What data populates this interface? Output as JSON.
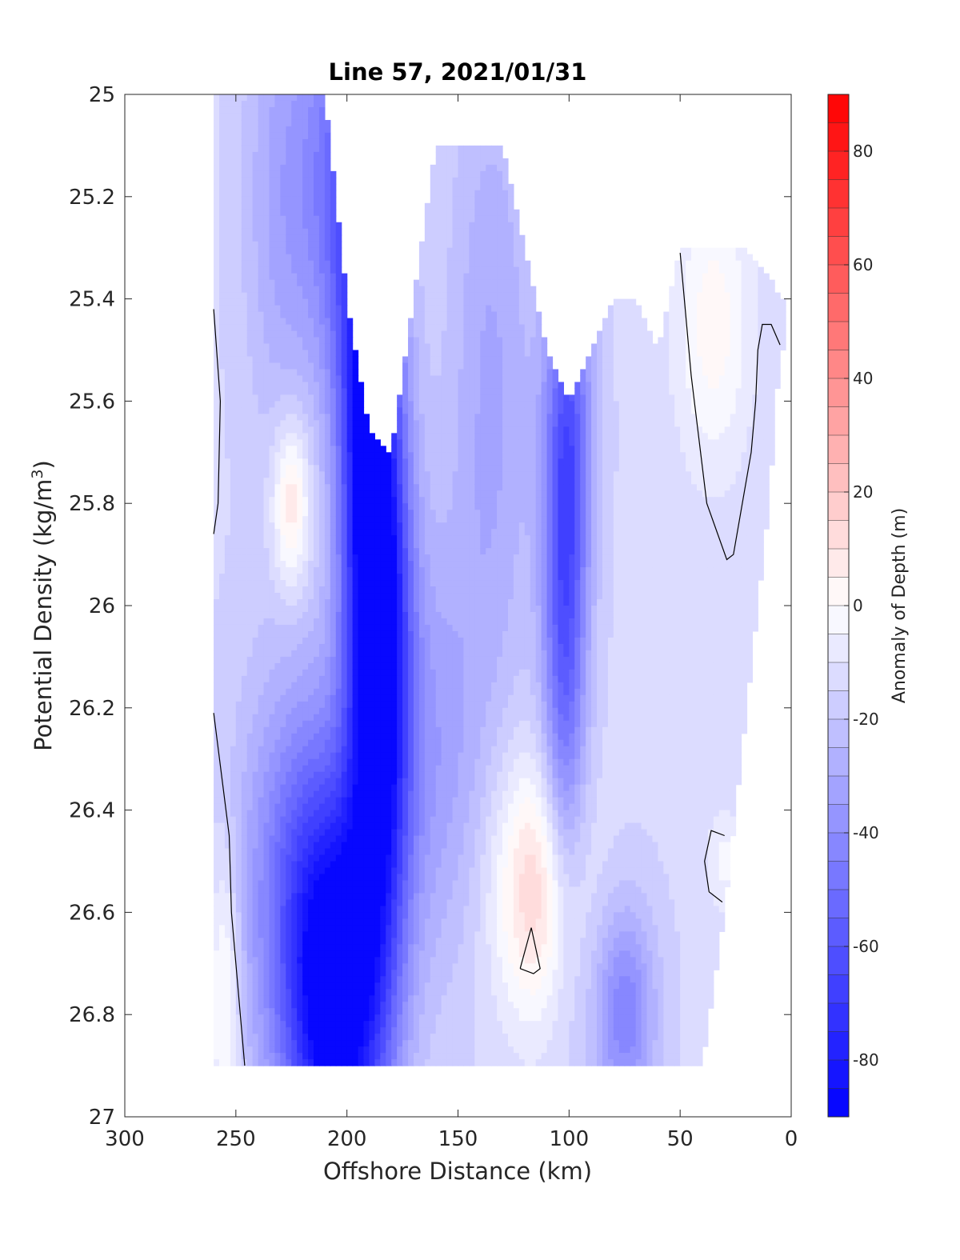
{
  "chart_data": {
    "type": "heatmap",
    "title": "Line 57, 2021/01/31",
    "xlabel": "Offshore Distance (km)",
    "ylabel_main": "Potential Density (kg/m",
    "ylabel_sup": "3",
    "ylabel_close": ")",
    "xlim": [
      300,
      0
    ],
    "ylim": [
      25,
      27
    ],
    "x_reversed": true,
    "y_reversed": true,
    "xticks": [
      300,
      250,
      200,
      150,
      100,
      50,
      0
    ],
    "xtick_labels": [
      "300",
      "250",
      "200",
      "150",
      "100",
      "50",
      "0"
    ],
    "yticks": [
      25,
      25.2,
      25.4,
      25.6,
      25.8,
      26,
      26.2,
      26.4,
      26.6,
      26.8,
      27
    ],
    "ytick_labels": [
      "25",
      "25.2",
      "25.4",
      "25.6",
      "25.8",
      "26",
      "26.2",
      "26.4",
      "26.6",
      "26.8",
      "27"
    ],
    "colorbar": {
      "label": "Anomaly of Depth (m)",
      "range": [
        -90,
        90
      ],
      "step": 5,
      "ticks": [
        80,
        60,
        40,
        20,
        0,
        -20,
        -40,
        -60,
        -80
      ],
      "tick_labels": [
        "80",
        "60",
        "40",
        "20",
        "0",
        "-20",
        "-40",
        "-60",
        "-80"
      ],
      "negative_color": "#0000ff",
      "positive_color": "#ff0000",
      "zero_color": "#ffffff"
    },
    "stations_x": [
      260,
      250,
      240,
      230,
      220,
      210,
      200,
      190,
      180,
      170,
      160,
      150,
      140,
      130,
      120,
      110,
      100,
      90,
      80,
      70,
      60,
      50,
      40,
      30,
      20,
      10,
      5
    ],
    "station_top_density": [
      25,
      25,
      25,
      25,
      25,
      25,
      25.4,
      25.65,
      25.7,
      25.4,
      25.1,
      25.1,
      25.1,
      25.1,
      25.3,
      25.5,
      25.6,
      25.5,
      25.4,
      25.4,
      25.5,
      25.3,
      25.3,
      25.3,
      25.3,
      25.35,
      25.4
    ],
    "station_bottom_density": [
      26.9,
      26.9,
      26.9,
      26.9,
      26.9,
      26.9,
      26.9,
      26.9,
      26.9,
      26.9,
      26.9,
      26.9,
      26.9,
      26.9,
      26.9,
      26.9,
      26.9,
      26.9,
      26.9,
      26.9,
      26.9,
      26.9,
      26.9,
      26.6,
      26.2,
      25.8,
      25.5
    ],
    "anomaly_features": [
      {
        "x": 185,
        "y": 26.1,
        "value": -82,
        "sx": 10,
        "sy": 0.45
      },
      {
        "x": 192,
        "y": 25.55,
        "value": -55,
        "sx": 9,
        "sy": 0.4
      },
      {
        "x": 205,
        "y": 26.8,
        "value": -72,
        "sx": 15,
        "sy": 0.28
      },
      {
        "x": 220,
        "y": 26.55,
        "value": -40,
        "sx": 20,
        "sy": 0.3
      },
      {
        "x": 230,
        "y": 25.2,
        "value": -22,
        "sx": 12,
        "sy": 0.35
      },
      {
        "x": 205,
        "y": 25.15,
        "value": -35,
        "sx": 12,
        "sy": 0.3
      },
      {
        "x": 102,
        "y": 26.1,
        "value": -45,
        "sx": 7,
        "sy": 0.35
      },
      {
        "x": 100,
        "y": 25.65,
        "value": -38,
        "sx": 8,
        "sy": 0.25
      },
      {
        "x": 75,
        "y": 26.8,
        "value": -35,
        "sx": 10,
        "sy": 0.15
      },
      {
        "x": 135,
        "y": 25.6,
        "value": -22,
        "sx": 14,
        "sy": 0.5
      },
      {
        "x": 160,
        "y": 26.3,
        "value": -22,
        "sx": 14,
        "sy": 0.3
      },
      {
        "x": 255,
        "y": 26.75,
        "value": 15,
        "sx": 5,
        "sy": 0.2
      },
      {
        "x": 35,
        "y": 25.45,
        "value": 12,
        "sx": 12,
        "sy": 0.2
      },
      {
        "x": 30,
        "y": 26.5,
        "value": 6,
        "sx": 6,
        "sy": 0.07
      },
      {
        "x": 115,
        "y": 26.55,
        "value": 25,
        "sx": 14,
        "sy": 0.18
      },
      {
        "x": 225,
        "y": 25.8,
        "value": 22,
        "sx": 6,
        "sy": 0.12
      }
    ],
    "background_value": -14,
    "zero_contours": [
      [
        [
          260,
          25.42
        ],
        [
          257,
          25.6
        ],
        [
          258,
          25.8
        ],
        [
          260,
          25.86
        ]
      ],
      [
        [
          260,
          26.21
        ],
        [
          253,
          26.45
        ],
        [
          252,
          26.6
        ],
        [
          249,
          26.75
        ],
        [
          246,
          26.9
        ]
      ],
      [
        [
          50,
          25.31
        ],
        [
          45,
          25.55
        ],
        [
          38,
          25.8
        ],
        [
          29,
          25.91
        ],
        [
          26,
          25.9
        ],
        [
          18,
          25.7
        ],
        [
          16,
          25.6
        ],
        [
          15,
          25.5
        ],
        [
          13,
          25.45
        ],
        [
          9,
          25.45
        ],
        [
          5,
          25.49
        ]
      ],
      [
        [
          122,
          26.71
        ],
        [
          117,
          26.63
        ],
        [
          113,
          26.71
        ],
        [
          116,
          26.72
        ],
        [
          122,
          26.71
        ]
      ],
      [
        [
          30,
          26.45
        ],
        [
          36,
          26.44
        ],
        [
          39,
          26.5
        ],
        [
          37,
          26.56
        ],
        [
          31,
          26.58
        ]
      ]
    ]
  }
}
